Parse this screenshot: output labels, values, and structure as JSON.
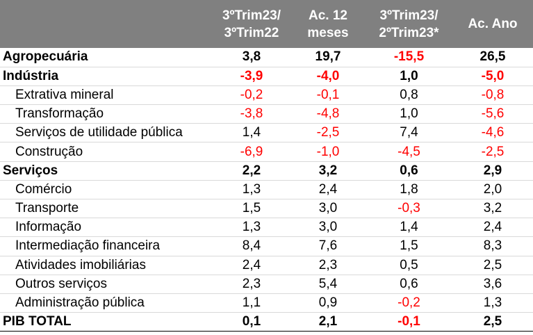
{
  "header": {
    "col1": [
      "3ºTrim23/",
      "3ºTrim22"
    ],
    "col2": [
      "Ac. 12",
      "meses"
    ],
    "col3": [
      "3ºTrim23/",
      "2ºTrim23*"
    ],
    "col4": [
      "Ac. Ano"
    ]
  },
  "colors": {
    "header_bg": "#808080",
    "header_text": "#ffffff",
    "negative": "#ff0000",
    "positive": "#000000"
  },
  "rows": [
    {
      "label": "Agropecuária",
      "type": "bold",
      "values": [
        "3,8",
        "19,7",
        "-15,5",
        "26,5"
      ]
    },
    {
      "label": "Indústria",
      "type": "bold",
      "values": [
        "-3,9",
        "-4,0",
        "1,0",
        "-5,0"
      ]
    },
    {
      "label": "Extrativa mineral",
      "type": "sub",
      "values": [
        "-0,2",
        "-0,1",
        "0,8",
        "-0,8"
      ]
    },
    {
      "label": "Transformação",
      "type": "sub",
      "values": [
        "-3,8",
        "-4,8",
        "1,0",
        "-5,6"
      ]
    },
    {
      "label": "Serviços de utilidade pública",
      "type": "sub",
      "values": [
        "1,4",
        "-2,5",
        "7,4",
        "-4,6"
      ]
    },
    {
      "label": "Construção",
      "type": "sub",
      "values": [
        "-6,9",
        "-1,0",
        "-4,5",
        "-2,5"
      ]
    },
    {
      "label": "Serviços",
      "type": "bold",
      "values": [
        "2,2",
        "3,2",
        "0,6",
        "2,9"
      ]
    },
    {
      "label": "Comércio",
      "type": "sub",
      "values": [
        "1,3",
        "2,4",
        "1,8",
        "2,0"
      ]
    },
    {
      "label": "Transporte",
      "type": "sub",
      "values": [
        "1,5",
        "3,0",
        "-0,3",
        "3,2"
      ]
    },
    {
      "label": "Informação",
      "type": "sub",
      "values": [
        "1,3",
        "3,0",
        "1,4",
        "2,4"
      ]
    },
    {
      "label": "Intermediação financeira",
      "type": "sub",
      "values": [
        "8,4",
        "7,6",
        "1,5",
        "8,3"
      ]
    },
    {
      "label": "Atividades imobiliárias",
      "type": "sub",
      "values": [
        "2,4",
        "2,3",
        "0,5",
        "2,5"
      ]
    },
    {
      "label": "Outros serviços",
      "type": "sub",
      "values": [
        "2,3",
        "5,4",
        "0,6",
        "3,6"
      ]
    },
    {
      "label": "Administração pública",
      "type": "sub",
      "values": [
        "1,1",
        "0,9",
        "-0,2",
        "1,3"
      ]
    },
    {
      "label": "PIB TOTAL",
      "type": "total",
      "values": [
        "0,1",
        "2,1",
        "-0,1",
        "2,5"
      ]
    }
  ]
}
